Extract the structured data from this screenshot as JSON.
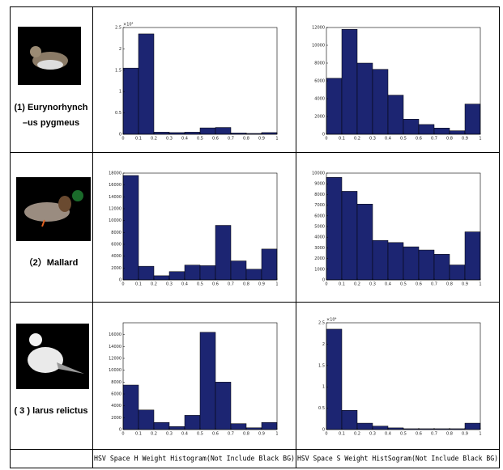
{
  "rows": [
    {
      "label": [
        "(1) Eurynorhynch",
        "–us pygmeus"
      ]
    },
    {
      "label": [
        "（2）Mallard"
      ]
    },
    {
      "label": [
        "( 3 ) larus relictus"
      ]
    }
  ],
  "captions": [
    "HSV Space H Weight Histogram(Not Include Black BG)",
    "HSV Space S Weight HistSogram(Not Include Black BG)"
  ],
  "chart_data": [
    {
      "type": "histogram",
      "annotation": "×10⁴",
      "bins": [
        0,
        0.1,
        0.2,
        0.3,
        0.4,
        0.5,
        0.6,
        0.7,
        0.8,
        0.9,
        1
      ],
      "values": [
        1.55,
        2.35,
        0.05,
        0.04,
        0.05,
        0.15,
        0.16,
        0.03,
        0.02,
        0.04
      ],
      "color": "#1c2572",
      "xlim": [
        0,
        1
      ],
      "xticks": [
        0,
        0.1,
        0.2,
        0.3,
        0.4,
        0.5,
        0.6,
        0.7,
        0.8,
        0.9,
        1
      ],
      "ylim": [
        0,
        2.5
      ],
      "yticks": [
        0,
        0.5,
        1,
        1.5,
        2,
        2.5
      ]
    },
    {
      "type": "histogram",
      "bins": [
        0,
        0.1,
        0.2,
        0.3,
        0.4,
        0.5,
        0.6,
        0.7,
        0.8,
        0.9,
        1
      ],
      "values": [
        6300,
        11800,
        8000,
        7300,
        4400,
        1700,
        1100,
        700,
        400,
        3400
      ],
      "color": "#1c2572",
      "xlim": [
        0,
        1
      ],
      "xticks": [
        0,
        0.1,
        0.2,
        0.3,
        0.4,
        0.5,
        0.6,
        0.7,
        0.8,
        0.9,
        1
      ],
      "ylim": [
        0,
        12000
      ],
      "yticks": [
        0,
        2000,
        4000,
        6000,
        8000,
        10000,
        12000
      ]
    },
    {
      "type": "histogram",
      "bins": [
        0,
        0.1,
        0.2,
        0.3,
        0.4,
        0.5,
        0.6,
        0.7,
        0.8,
        0.9,
        1
      ],
      "values": [
        17600,
        2300,
        700,
        1400,
        2500,
        2400,
        9200,
        3200,
        1800,
        5200
      ],
      "color": "#1c2572",
      "xlim": [
        0,
        1
      ],
      "xticks": [
        0,
        0.1,
        0.2,
        0.3,
        0.4,
        0.5,
        0.6,
        0.7,
        0.8,
        0.9,
        1
      ],
      "ylim": [
        0,
        18000
      ],
      "yticks": [
        0,
        2000,
        4000,
        6000,
        8000,
        10000,
        12000,
        14000,
        16000,
        18000
      ]
    },
    {
      "type": "histogram",
      "bins": [
        0,
        0.1,
        0.2,
        0.3,
        0.4,
        0.5,
        0.6,
        0.7,
        0.8,
        0.9,
        1
      ],
      "values": [
        9600,
        8300,
        7100,
        3700,
        3500,
        3100,
        2800,
        2400,
        1400,
        4500
      ],
      "color": "#1c2572",
      "xlim": [
        0,
        1
      ],
      "xticks": [
        0,
        0.1,
        0.2,
        0.3,
        0.4,
        0.5,
        0.6,
        0.7,
        0.8,
        0.9,
        1
      ],
      "ylim": [
        0,
        10000
      ],
      "yticks": [
        0,
        1000,
        2000,
        3000,
        4000,
        5000,
        6000,
        7000,
        8000,
        9000,
        10000
      ]
    },
    {
      "type": "histogram",
      "bins": [
        0,
        0.1,
        0.2,
        0.3,
        0.4,
        0.5,
        0.6,
        0.7,
        0.8,
        0.9,
        1
      ],
      "values": [
        7500,
        3300,
        1200,
        500,
        2400,
        16400,
        8000,
        1000,
        300,
        1200
      ],
      "color": "#1c2572",
      "xlim": [
        0,
        1
      ],
      "xticks": [
        0,
        0.1,
        0.2,
        0.3,
        0.4,
        0.5,
        0.6,
        0.7,
        0.8,
        0.9,
        1
      ],
      "ylim": [
        0,
        18000
      ],
      "yticks": [
        0,
        2000,
        4000,
        6000,
        8000,
        10000,
        12000,
        14000,
        16000
      ]
    },
    {
      "type": "histogram",
      "annotation": "×10⁴",
      "bins": [
        0,
        0.1,
        0.2,
        0.3,
        0.4,
        0.5,
        0.6,
        0.7,
        0.8,
        0.9,
        1
      ],
      "values": [
        2.35,
        0.45,
        0.15,
        0.08,
        0.04,
        0.02,
        0.02,
        0.02,
        0.02,
        0.15
      ],
      "color": "#1c2572",
      "xlim": [
        0,
        1
      ],
      "xticks": [
        0,
        0.1,
        0.2,
        0.3,
        0.4,
        0.5,
        0.6,
        0.7,
        0.8,
        0.9,
        1
      ],
      "ylim": [
        0,
        2.5
      ],
      "yticks": [
        0,
        0.5,
        1,
        1.5,
        2,
        2.5
      ]
    }
  ]
}
